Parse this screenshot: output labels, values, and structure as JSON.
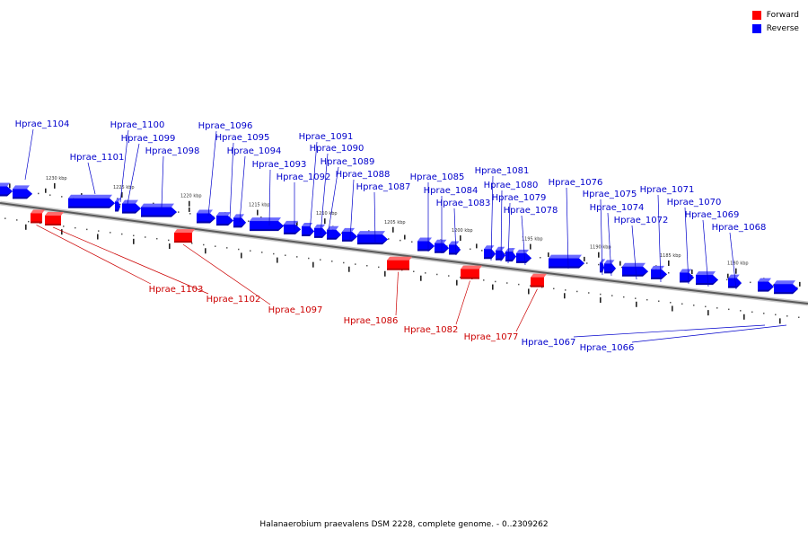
{
  "legend": {
    "forward_label": "Forward",
    "reverse_label": "Reverse",
    "forward_color": "#ff0000",
    "reverse_color": "#0000ff"
  },
  "caption": "Halanaerobium praevalens DSM 2228, complete genome. - 0..2309262",
  "tick_labels": [
    "1230 kbp",
    "1225 kbp",
    "1220 kbp",
    "1215 kbp",
    "1210 kbp",
    "1205 kbp",
    "1200 kbp",
    "1195 kbp",
    "1190 kbp",
    "1185 kbp",
    "1180 kbp"
  ],
  "genes": [
    {
      "name": "Hprae_1104",
      "strand": "reverse"
    },
    {
      "name": "Hprae_1103",
      "strand": "forward"
    },
    {
      "name": "Hprae_1102",
      "strand": "forward"
    },
    {
      "name": "Hprae_1101",
      "strand": "reverse"
    },
    {
      "name": "Hprae_1100",
      "strand": "reverse"
    },
    {
      "name": "Hprae_1099",
      "strand": "reverse"
    },
    {
      "name": "Hprae_1098",
      "strand": "reverse"
    },
    {
      "name": "Hprae_1097",
      "strand": "forward"
    },
    {
      "name": "Hprae_1096",
      "strand": "reverse"
    },
    {
      "name": "Hprae_1095",
      "strand": "reverse"
    },
    {
      "name": "Hprae_1094",
      "strand": "reverse"
    },
    {
      "name": "Hprae_1093",
      "strand": "reverse"
    },
    {
      "name": "Hprae_1092",
      "strand": "reverse"
    },
    {
      "name": "Hprae_1091",
      "strand": "reverse"
    },
    {
      "name": "Hprae_1090",
      "strand": "reverse"
    },
    {
      "name": "Hprae_1089",
      "strand": "reverse"
    },
    {
      "name": "Hprae_1088",
      "strand": "reverse"
    },
    {
      "name": "Hprae_1087",
      "strand": "reverse"
    },
    {
      "name": "Hprae_1086",
      "strand": "forward"
    },
    {
      "name": "Hprae_1085",
      "strand": "reverse"
    },
    {
      "name": "Hprae_1084",
      "strand": "reverse"
    },
    {
      "name": "Hprae_1083",
      "strand": "reverse"
    },
    {
      "name": "Hprae_1082",
      "strand": "forward"
    },
    {
      "name": "Hprae_1081",
      "strand": "reverse"
    },
    {
      "name": "Hprae_1080",
      "strand": "reverse"
    },
    {
      "name": "Hprae_1079",
      "strand": "reverse"
    },
    {
      "name": "Hprae_1078",
      "strand": "reverse"
    },
    {
      "name": "Hprae_1077",
      "strand": "forward"
    },
    {
      "name": "Hprae_1076",
      "strand": "reverse"
    },
    {
      "name": "Hprae_1075",
      "strand": "reverse"
    },
    {
      "name": "Hprae_1074",
      "strand": "reverse"
    },
    {
      "name": "Hprae_1072",
      "strand": "reverse"
    },
    {
      "name": "Hprae_1071",
      "strand": "reverse"
    },
    {
      "name": "Hprae_1070",
      "strand": "reverse"
    },
    {
      "name": "Hprae_1069",
      "strand": "reverse"
    },
    {
      "name": "Hprae_1068",
      "strand": "reverse"
    },
    {
      "name": "Hprae_1067",
      "strand": "reverse"
    },
    {
      "name": "Hprae_1066",
      "strand": "reverse"
    }
  ]
}
